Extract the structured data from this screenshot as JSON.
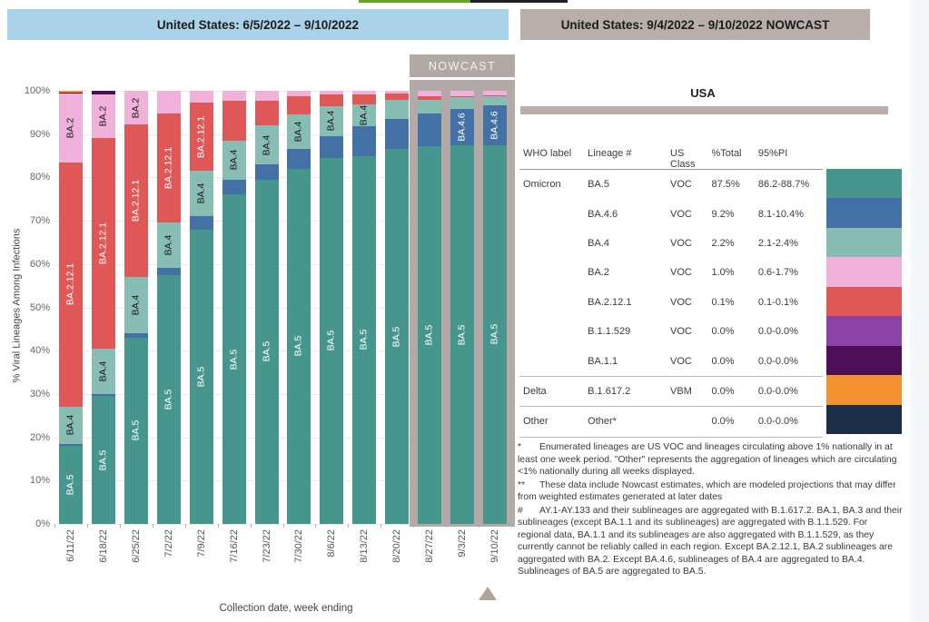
{
  "top_bar": {
    "green_color": "#66a321",
    "black_color": "#1f1f1f"
  },
  "headers": {
    "left": "United States: 6/5/2022 – 9/10/2022",
    "right": "United States: 9/4/2022 – 9/10/2022 NOWCAST"
  },
  "nowcast_box_label": "NOWCAST",
  "chart_data": {
    "type": "bar",
    "stacked": true,
    "xlabel": "Collection date, week ending",
    "ylabel": "% Viral Lineages Among Infections",
    "ylim": [
      0,
      100
    ],
    "ytick_labels": [
      "0%",
      "10%",
      "20%",
      "30%",
      "40%",
      "50%",
      "60%",
      "70%",
      "80%",
      "90%",
      "100%"
    ],
    "grid": true,
    "categories": [
      "6/11/22",
      "6/18/22",
      "6/25/22",
      "7/2/22",
      "7/9/22",
      "7/16/22",
      "7/23/22",
      "7/30/22",
      "8/6/22",
      "8/13/22",
      "8/20/22",
      "8/27/22",
      "9/3/22",
      "9/10/22"
    ],
    "nowcast_categories": [
      "8/27/22",
      "9/3/22",
      "9/10/22"
    ],
    "series": [
      {
        "name": "BA.5",
        "color": "#47968e",
        "values": [
          18,
          29.5,
          43,
          57.5,
          68,
          76,
          79.5,
          82,
          84.5,
          85,
          86.5,
          87.3,
          87.4,
          87.5
        ]
      },
      {
        "name": "BA.4.6",
        "color": "#4471a5",
        "values": [
          0.5,
          0.5,
          1.0,
          1.7,
          3.0,
          3.5,
          3.5,
          4.5,
          5.0,
          6.8,
          7.0,
          7.5,
          8.4,
          9.2
        ]
      },
      {
        "name": "BA.4",
        "color": "#87bdb3",
        "values": [
          8.5,
          10.5,
          13.0,
          10.4,
          10.5,
          9.0,
          9.0,
          8.0,
          7.0,
          5.0,
          4.5,
          3.2,
          2.7,
          2.2
        ]
      },
      {
        "name": "BA.2.12.1",
        "color": "#e05758",
        "values": [
          56.5,
          48.5,
          35.2,
          25.2,
          15.7,
          9.1,
          5.6,
          4.3,
          2.6,
          2.3,
          1.3,
          0.7,
          0.2,
          0.1
        ]
      },
      {
        "name": "BA.2",
        "color": "#f0b1da",
        "values": [
          16.0,
          10.2,
          7.8,
          5.2,
          2.8,
          2.4,
          2.4,
          1.2,
          0.9,
          0.9,
          0.7,
          1.3,
          1.3,
          1.0
        ]
      },
      {
        "name": "B.1.1.529",
        "color": "#8b42a5",
        "values": [
          0,
          0,
          0,
          0,
          0,
          0,
          0,
          0,
          0,
          0,
          0,
          0,
          0,
          0
        ]
      },
      {
        "name": "BA.1.1",
        "color": "#4b0e57",
        "values": [
          0.1,
          0.8,
          0,
          0,
          0,
          0,
          0,
          0,
          0,
          0,
          0,
          0,
          0,
          0
        ]
      },
      {
        "name": "B.1.617.2",
        "color": "#f2912d",
        "values": [
          0.4,
          0,
          0,
          0,
          0,
          0,
          0,
          0,
          0,
          0,
          0,
          0,
          0,
          0
        ]
      },
      {
        "name": "Other",
        "color": "#1c2e45",
        "values": [
          0,
          0,
          0,
          0,
          0,
          0,
          0,
          0,
          0,
          0,
          0,
          0,
          0,
          0
        ]
      }
    ],
    "segment_labels": {
      "BA.5": [
        0,
        1,
        2,
        3,
        4,
        5,
        6,
        7,
        8,
        9,
        10,
        11,
        12,
        13
      ],
      "BA.4": [
        0,
        1,
        2,
        3,
        4,
        5,
        6,
        7,
        8,
        9
      ],
      "BA.2.12.1": [
        0,
        1,
        2,
        3,
        4
      ],
      "BA.2": [
        0,
        1,
        2
      ],
      "BA.4.6": [
        12,
        13
      ]
    },
    "segment_label_colors": {
      "BA.5": "#ffffff",
      "BA.4": "#1a1a1a",
      "BA.2.12.1": "#ffffff",
      "BA.2": "#1a1a1a",
      "BA.4.6": "#ffffff"
    }
  },
  "table": {
    "title": "USA",
    "columns": [
      "WHO label",
      "Lineage #",
      "US Class",
      "%Total",
      "95%PI"
    ],
    "rows": [
      {
        "who": "Omicron",
        "lineage": "BA.5",
        "class": "VOC",
        "total": "87.5%",
        "pi": "86.2-88.7%",
        "color": "#47968e",
        "group_start": false
      },
      {
        "who": "",
        "lineage": "BA.4.6",
        "class": "VOC",
        "total": "9.2%",
        "pi": "8.1-10.4%",
        "color": "#4471a5",
        "group_start": false
      },
      {
        "who": "",
        "lineage": "BA.4",
        "class": "VOC",
        "total": "2.2%",
        "pi": "2.1-2.4%",
        "color": "#87bdb3",
        "group_start": false
      },
      {
        "who": "",
        "lineage": "BA.2",
        "class": "VOC",
        "total": "1.0%",
        "pi": "0.6-1.7%",
        "color": "#f0b1da",
        "group_start": false
      },
      {
        "who": "",
        "lineage": "BA.2.12.1",
        "class": "VOC",
        "total": "0.1%",
        "pi": "0.1-0.1%",
        "color": "#e05758",
        "group_start": false
      },
      {
        "who": "",
        "lineage": "B.1.1.529",
        "class": "VOC",
        "total": "0.0%",
        "pi": "0.0-0.0%",
        "color": "#8b42a5",
        "group_start": false
      },
      {
        "who": "",
        "lineage": "BA.1.1",
        "class": "VOC",
        "total": "0.0%",
        "pi": "0.0-0.0%",
        "color": "#4b0e57",
        "group_start": false
      },
      {
        "who": "Delta",
        "lineage": "B.1.617.2",
        "class": "VBM",
        "total": "0.0%",
        "pi": "0.0-0.0%",
        "color": "#f2912d",
        "group_start": true
      },
      {
        "who": "Other",
        "lineage": "Other*",
        "class": "",
        "total": "0.0%",
        "pi": "0.0-0.0%",
        "color": "#1c2e45",
        "group_start": true
      }
    ]
  },
  "footnotes": [
    {
      "marker": "*",
      "text": "Enumerated lineages are US VOC and lineages circulating above 1% nationally in at least one week period. \"Other\" represents the aggregation of lineages which are circulating <1% nationally during all weeks displayed."
    },
    {
      "marker": "**",
      "text": "These data include Nowcast estimates, which are modeled projections that may differ from weighted estimates generated at later dates"
    },
    {
      "marker": "#",
      "text": "AY.1-AY.133 and their sublineages are aggregated with B.1.617.2. BA.1, BA.3 and their sublineages (except BA.1.1 and its sublineages) are aggregated with B.1.1.529. For regional data, BA.1.1 and its sublineages are also aggregated with B.1.1.529, as they currently cannot be reliably called in each region. Except BA.2.12.1, BA.2 sublineages are aggregated with BA.2. Except BA.4.6, sublineages of BA.4 are aggregated to BA.4. Sublineages of BA.5 are aggregated to BA.5."
    }
  ]
}
